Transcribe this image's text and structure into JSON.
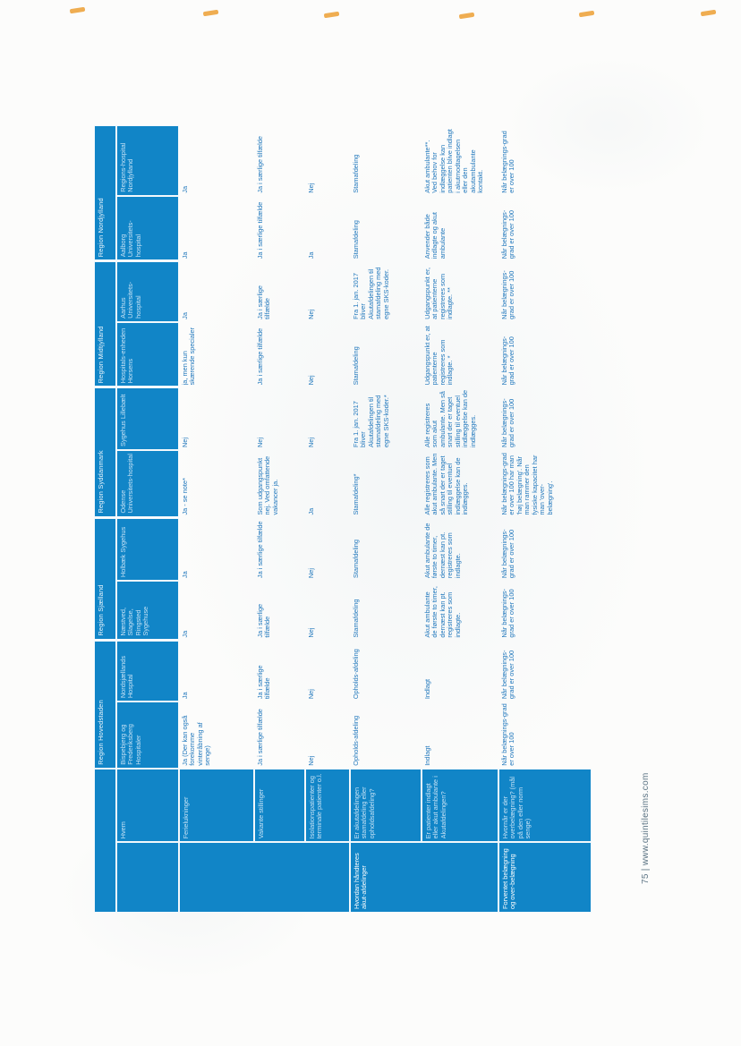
{
  "page": {
    "footer": "75 | www.quintilesims.com",
    "accent_blue": "#1185c7",
    "highlight_color": "#eda43e"
  },
  "table": {
    "regions": [
      "Region Hovedstaden",
      "Region Sjælland",
      "Region Syddanmark",
      "Region Midtjylland",
      "Region Nordjylland"
    ],
    "hvem_label": "Hvem",
    "hospitals": [
      "Bispebjerg og Frederiksberg Hospitaler",
      "Nordsjællands Hospital",
      "Næstved, Slagelse, Ringsted Sygehuse",
      "Holbæk Sygehus",
      "Odense Universitets-hospital",
      "Sygehus Lillebælt",
      "Hospitals-enheden Horsens",
      "Aarhus Universitets-hospital",
      "Aalborg Universitets-hospital",
      "Regions-hospital Nordjylland"
    ],
    "row_groups": [
      {
        "label": ""
      },
      {
        "label": "Hvordan håndteres akut-afdelinger"
      },
      {
        "label": "Forventet belægning og over-belægning"
      }
    ],
    "rows": [
      {
        "label": "Ferielukninger",
        "cells": [
          "Ja (Der kan også forekomme vinteråbning af senge)",
          "Ja",
          "Ja",
          "Ja",
          "Ja - se note*",
          "Nej",
          "ja, men kun skærende specialer",
          "Ja",
          "Ja",
          "Ja"
        ]
      },
      {
        "label": "Vakante stillinger",
        "cells": [
          "Ja i særlige tilfælde",
          "Ja i særlige tilfælde",
          "Ja i særlige tilfælde",
          "Ja i særlige tilfælde",
          "Som udgangspunkt nej. Ved omfattende vakancer ja.",
          "Nej",
          "Ja i særlige tilfælde",
          "Ja i særlige tilfælde",
          "Ja i særlige tilfælde",
          "Ja i særlige tilfælde"
        ]
      },
      {
        "label": "Isolationspatienter og terminale patienter o.l.",
        "cells": [
          "Nej",
          "Nej",
          "Nej",
          "Nej",
          "Ja",
          "Nej",
          "Nej",
          "Nej",
          "Ja",
          "Nej"
        ]
      },
      {
        "label": "Er akutafdelingen stamafdeling eller opholdsafdeling?",
        "cells": [
          "Opholds-afdeling",
          "Opholds-afdeling",
          "Stamafdeling",
          "Stamafdeling",
          "Stamafdeling*",
          "Fra 1. jan. 2017 bliver Akutafdelingen til stamafdeling med egne SKS-koder.*",
          "Stamafdeling",
          "Fra 1. jan. 2017 bliver Akutafdelingen til stamafdeling med egne SKS-koder.",
          "Stamafdeling",
          "Stamafdeling"
        ]
      },
      {
        "label": "Er patienter indlagt eller akut ambulante i Akutafdelingen?",
        "cells": [
          "Indlagt",
          "Indlagt",
          "Akut ambulante de første to timer, dernæst kan pt. registreres som indlagte.",
          "Akut ambulante de første to timer, dernæst kan pt. registreres som indlagte.",
          "Alle registreres som akut ambulante. Men så snart der er taget stilling til eventuel indlæggelse kan de indlægges.",
          "Alle registreres som akut ambulante. Men så snart der er taget stilling til eventuel indlæggelse kan de indlægges.",
          "Udgangspunkt er, at patienterne registreres som indlagte. *",
          "Udgangspunkt er, at patienterne registreres som indlagte. **",
          "Anvender både indlagte og akut ambulante",
          "Akut ambulante**. Ved behov for indlæggelse kan patienten blive indlagt i akutmodtagelsen eller den akutambulante kontakt."
        ]
      },
      {
        "label": "Hvornår er der overbelægning? (mål på den eller norm senge)",
        "cells": [
          "Når belægnings-grad er over 100",
          "Når belægnings-grad er over 100",
          "Når belægnings-grad er over 100",
          "Når belægnings-grad er over 100",
          "Når belægnings-grad er over 100 har man 'høj belægning'. Når man rammer den fysiske kapacitet har man 'over-belægning'.",
          "Når belægnings-grad er over 100",
          "Når belægnings-grad er over 100",
          "Når belægnings-grad er over 100",
          "Når belægnings-grad er over 100",
          "Når belægnings-grad er over 100"
        ]
      }
    ]
  }
}
